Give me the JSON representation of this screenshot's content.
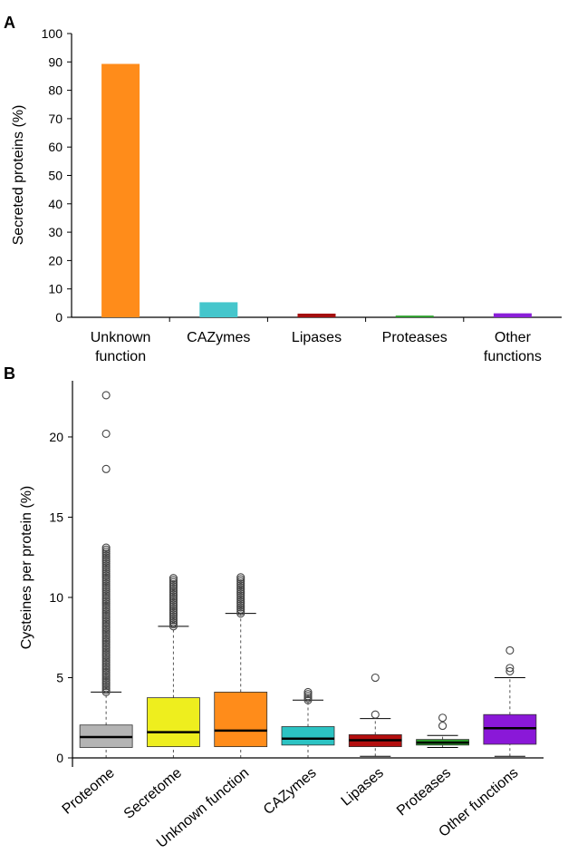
{
  "chart_data": [
    {
      "panel": "A",
      "type": "bar",
      "ylabel": "Secreted proteins (%)",
      "ylim": [
        0,
        100
      ],
      "yticks": [
        0,
        10,
        20,
        30,
        40,
        50,
        60,
        70,
        80,
        90,
        100
      ],
      "categories": [
        {
          "line1": "Unknown",
          "line2": "function"
        },
        {
          "line1": "CAZymes",
          "line2": ""
        },
        {
          "line1": "Lipases",
          "line2": ""
        },
        {
          "line1": "Proteases",
          "line2": ""
        },
        {
          "line1": "Other",
          "line2": "functions"
        }
      ],
      "values": [
        89.3,
        5.3,
        1.3,
        0.6,
        1.4
      ],
      "colors": [
        "#FF8C1A",
        "#45C6CC",
        "#A50F0F",
        "#2CA02C",
        "#8A1FD8"
      ]
    },
    {
      "panel": "B",
      "type": "box",
      "ylabel": "Cysteines per protein (%)",
      "ylim": [
        0,
        23.5
      ],
      "yticks": [
        0,
        5,
        10,
        15,
        20
      ],
      "categories": [
        "Proteome",
        "Secretome",
        "Unknown function",
        "CAZymes",
        "Lipases",
        "Proteases",
        "Other functions"
      ],
      "colors": [
        "#B4B4B4",
        "#EEEE1E",
        "#FF8C1A",
        "#2BC3C3",
        "#B30E0E",
        "#2BA02B",
        "#8A18D8"
      ],
      "boxes": [
        {
          "min": 0,
          "q1": 0.65,
          "median": 1.3,
          "q3": 2.05,
          "max": 4.1,
          "outlier_band": [
            4.1,
            13.2
          ],
          "outliers": [
            18.0,
            20.2,
            22.6
          ]
        },
        {
          "min": 0,
          "q1": 0.7,
          "median": 1.6,
          "q3": 3.75,
          "max": 8.2,
          "outlier_band": [
            8.2,
            11.3
          ],
          "outliers": []
        },
        {
          "min": 0,
          "q1": 0.7,
          "median": 1.7,
          "q3": 4.1,
          "max": 9.0,
          "outlier_band": [
            9.0,
            11.3
          ],
          "outliers": []
        },
        {
          "min": 0,
          "q1": 0.8,
          "median": 1.2,
          "q3": 1.95,
          "max": 3.6,
          "outlier_band": [
            3.6,
            4.2
          ],
          "outliers": []
        },
        {
          "min": 0.1,
          "q1": 0.7,
          "median": 1.1,
          "q3": 1.45,
          "max": 2.45,
          "outlier_band": null,
          "outliers": [
            2.7,
            5.0
          ]
        },
        {
          "min": 0.65,
          "q1": 0.8,
          "median": 0.95,
          "q3": 1.15,
          "max": 1.4,
          "outlier_band": null,
          "outliers": [
            2.0,
            2.5
          ]
        },
        {
          "min": 0.1,
          "q1": 0.85,
          "median": 1.85,
          "q3": 2.7,
          "max": 5.0,
          "outlier_band": null,
          "outliers": [
            5.4,
            5.6,
            6.7
          ]
        }
      ]
    }
  ]
}
